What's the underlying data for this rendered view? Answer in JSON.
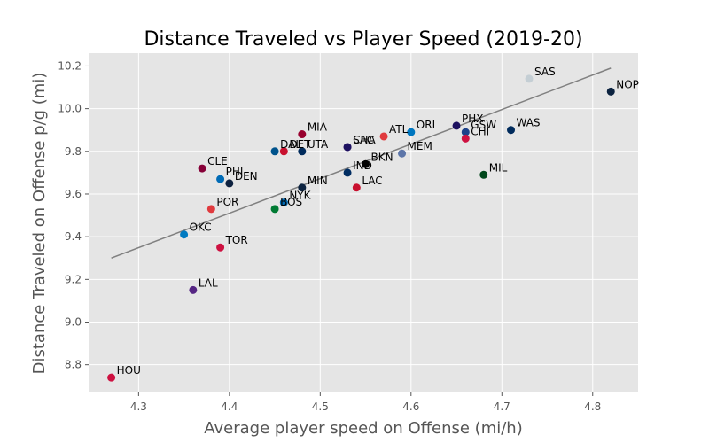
{
  "chart_data": {
    "type": "scatter",
    "title": "Distance Traveled vs Player Speed (2019-20)",
    "xlabel": "Average player speed on Offense (mi/h)",
    "ylabel": "Distance Traveled on Offense p/g (mi)",
    "xlim": [
      4.245,
      4.85
    ],
    "ylim": [
      8.67,
      10.26
    ],
    "xticks": [
      4.3,
      4.4,
      4.5,
      4.6,
      4.7,
      4.8
    ],
    "yticks": [
      8.8,
      9.0,
      9.2,
      9.4,
      9.6,
      9.8,
      10.0,
      10.2
    ],
    "xtick_labels": [
      "4.3",
      "4.4",
      "4.5",
      "4.6",
      "4.7",
      "4.8"
    ],
    "ytick_labels": [
      "8.8",
      "9.0",
      "9.2",
      "9.4",
      "9.6",
      "9.8",
      "10.0",
      "10.2"
    ],
    "grid": true,
    "background": "#e5e5e5",
    "trend_line": {
      "x": [
        4.27,
        4.82
      ],
      "y": [
        9.3,
        10.19
      ],
      "color": "#808080"
    },
    "points": [
      {
        "team": "HOU",
        "x": 4.27,
        "y": 8.74,
        "color": "#ce1141"
      },
      {
        "team": "LAL",
        "x": 4.36,
        "y": 9.15,
        "color": "#552583"
      },
      {
        "team": "TOR",
        "x": 4.39,
        "y": 9.35,
        "color": "#ce1141"
      },
      {
        "team": "OKC",
        "x": 4.35,
        "y": 9.41,
        "color": "#007ac1"
      },
      {
        "team": "POR",
        "x": 4.38,
        "y": 9.53,
        "color": "#e03a3e"
      },
      {
        "team": "PHI",
        "x": 4.39,
        "y": 9.67,
        "color": "#006bb6"
      },
      {
        "team": "DEN",
        "x": 4.4,
        "y": 9.65,
        "color": "#0e2240"
      },
      {
        "team": "CLE",
        "x": 4.37,
        "y": 9.72,
        "color": "#860038"
      },
      {
        "team": "BOS",
        "x": 4.45,
        "y": 9.53,
        "color": "#007a33"
      },
      {
        "team": "NYK",
        "x": 4.46,
        "y": 9.56,
        "color": "#006bb6"
      },
      {
        "team": "MIN",
        "x": 4.48,
        "y": 9.63,
        "color": "#0c2340"
      },
      {
        "team": "DAL",
        "x": 4.45,
        "y": 9.8,
        "color": "#00538c"
      },
      {
        "team": "DET",
        "x": 4.46,
        "y": 9.8,
        "color": "#c8102e"
      },
      {
        "team": "UTA",
        "x": 4.48,
        "y": 9.8,
        "color": "#002b5c"
      },
      {
        "team": "MIA",
        "x": 4.48,
        "y": 9.88,
        "color": "#98002e"
      },
      {
        "team": "SAC",
        "x": 4.53,
        "y": 9.82,
        "color": "#5a2d81"
      },
      {
        "team": "CHA",
        "x": 4.53,
        "y": 9.82,
        "color": "#1d1160"
      },
      {
        "team": "IND",
        "x": 4.53,
        "y": 9.7,
        "color": "#002d62"
      },
      {
        "team": "BKN",
        "x": 4.55,
        "y": 9.74,
        "color": "#000000"
      },
      {
        "team": "LAC",
        "x": 4.54,
        "y": 9.63,
        "color": "#c8102e"
      },
      {
        "team": "ATL",
        "x": 4.57,
        "y": 9.87,
        "color": "#e03a3e"
      },
      {
        "team": "MEM",
        "x": 4.59,
        "y": 9.79,
        "color": "#5d76a9"
      },
      {
        "team": "ORL",
        "x": 4.6,
        "y": 9.89,
        "color": "#0077c0"
      },
      {
        "team": "PHX",
        "x": 4.65,
        "y": 9.92,
        "color": "#1d1160"
      },
      {
        "team": "GSW",
        "x": 4.66,
        "y": 9.89,
        "color": "#1d428a"
      },
      {
        "team": "CHI",
        "x": 4.66,
        "y": 9.86,
        "color": "#ce1141"
      },
      {
        "team": "MIL",
        "x": 4.68,
        "y": 9.69,
        "color": "#00471b"
      },
      {
        "team": "WAS",
        "x": 4.71,
        "y": 9.9,
        "color": "#002b5c"
      },
      {
        "team": "SAS",
        "x": 4.73,
        "y": 10.14,
        "color": "#c4ced4"
      },
      {
        "team": "NOP",
        "x": 4.82,
        "y": 10.08,
        "color": "#0c2340"
      }
    ]
  }
}
